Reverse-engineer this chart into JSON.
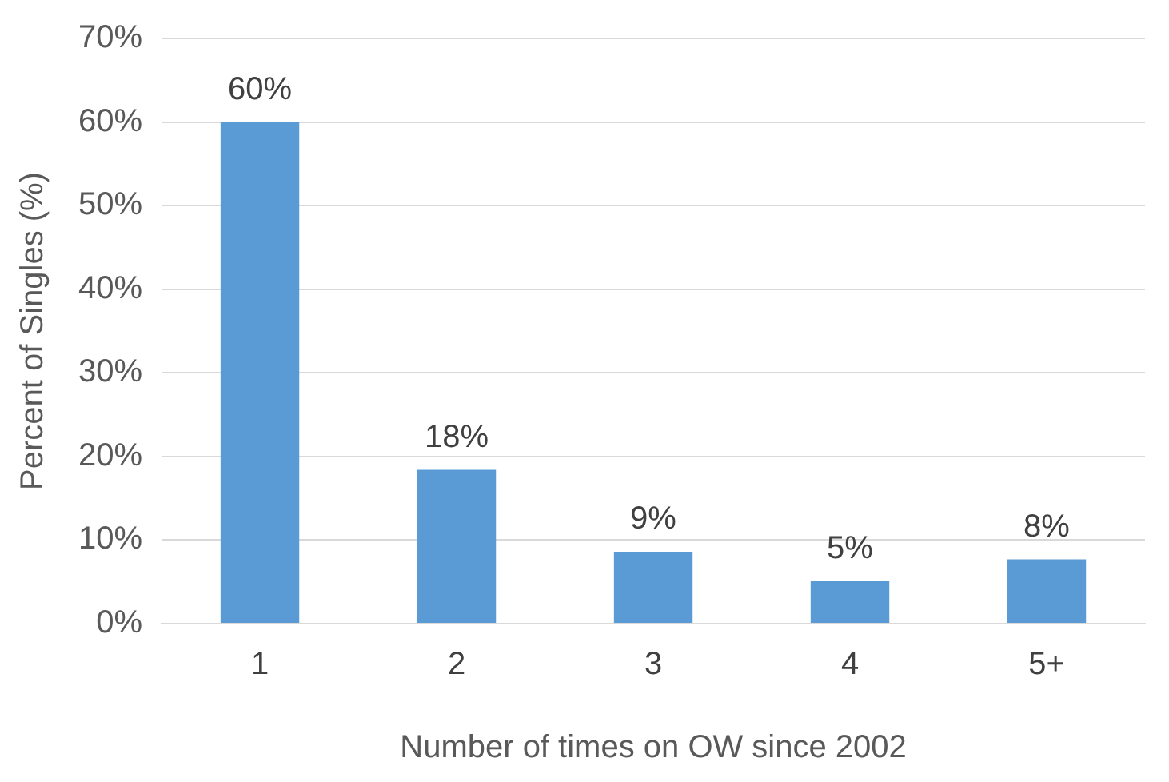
{
  "chart_data": {
    "type": "bar",
    "xlabel": "Number of times on OW since 2002",
    "ylabel": "Percent of Singles (%)",
    "categories": [
      "1",
      "2",
      "3",
      "4",
      "5+"
    ],
    "values": [
      60,
      18.4,
      8.6,
      5.1,
      7.7
    ],
    "value_labels": [
      "60%",
      "18%",
      "9%",
      "5%",
      "8%"
    ],
    "color": "#5b9bd5",
    "ylim": [
      0,
      70
    ],
    "yticks": [
      {
        "value": 0,
        "label": "0%"
      },
      {
        "value": 10,
        "label": "10%"
      },
      {
        "value": 20,
        "label": "20%"
      },
      {
        "value": 30,
        "label": "30%"
      },
      {
        "value": 40,
        "label": "40%"
      },
      {
        "value": 50,
        "label": "50%"
      },
      {
        "value": 60,
        "label": "60%"
      },
      {
        "value": 70,
        "label": "70%"
      }
    ],
    "grid": "y",
    "legend": false
  }
}
